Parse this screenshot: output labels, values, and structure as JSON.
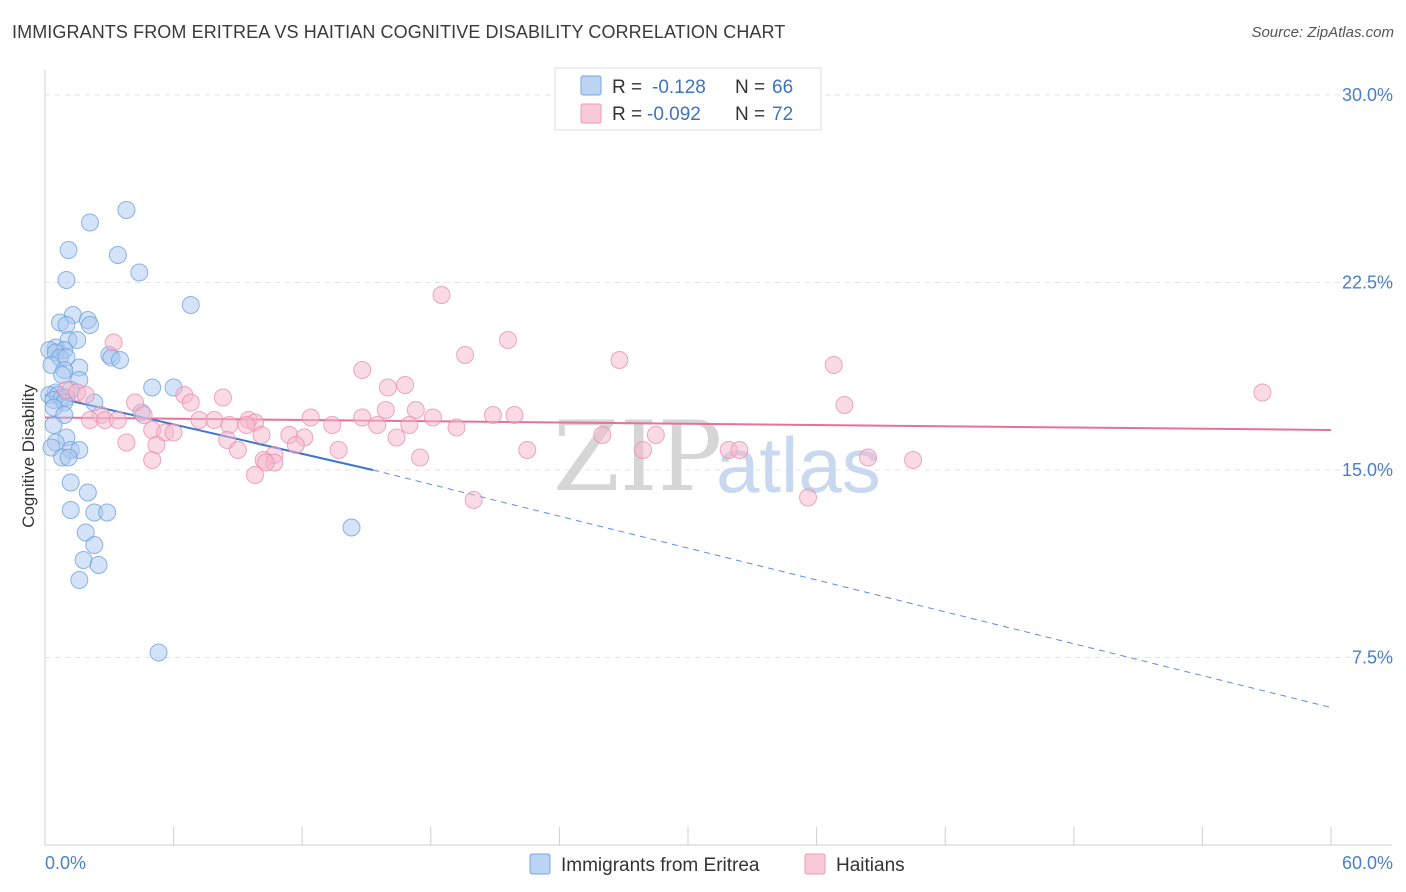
{
  "header": {
    "title": "IMMIGRANTS FROM ERITREA VS HAITIAN COGNITIVE DISABILITY CORRELATION CHART",
    "source": "Source: ZipAtlas.com"
  },
  "watermark": {
    "zip": "ZIP",
    "atlas": "atlas"
  },
  "legend": {
    "rows": [
      {
        "r_label": "R =",
        "r_value": "-0.128",
        "n_label": "N =",
        "n_value": "66",
        "color": "#a9c8ef"
      },
      {
        "r_label": "R =",
        "r_value": "-0.092",
        "n_label": "N =",
        "n_value": "72",
        "color": "#f5b8cb"
      }
    ]
  },
  "bottom_legend": [
    {
      "label": "Immigrants from Eritrea",
      "color": "#a9c8ef"
    },
    {
      "label": "Haitians",
      "color": "#f5b8cb"
    }
  ],
  "chart_data": {
    "type": "scatter",
    "title": "IMMIGRANTS FROM ERITREA VS HAITIAN COGNITIVE DISABILITY CORRELATION CHART",
    "xlabel": "",
    "ylabel": "Cognitive Disability",
    "xlim": [
      0,
      60
    ],
    "ylim": [
      0,
      31
    ],
    "x_tick_labels": [
      "0.0%",
      "60.0%"
    ],
    "y_ticks": [
      7.5,
      15.0,
      22.5,
      30.0
    ],
    "y_tick_labels": [
      "7.5%",
      "15.0%",
      "22.5%",
      "30.0%"
    ],
    "grid": true,
    "legend_position": "top-center",
    "series": [
      {
        "name": "Immigrants from Eritrea",
        "color": "#6a9edc",
        "fill": "#a9c8ef",
        "trend": {
          "x0": 0,
          "y0": 18.0,
          "x1_solid": 15.3,
          "y1_solid": 15.0,
          "x1": 60,
          "y1": 5.5
        },
        "points": [
          [
            3.8,
            25.4
          ],
          [
            2.1,
            24.9
          ],
          [
            3.4,
            23.6
          ],
          [
            1.1,
            23.8
          ],
          [
            4.4,
            22.9
          ],
          [
            1.0,
            22.6
          ],
          [
            6.8,
            21.6
          ],
          [
            1.3,
            21.2
          ],
          [
            2.0,
            21.0
          ],
          [
            0.7,
            20.9
          ],
          [
            1.0,
            20.8
          ],
          [
            2.1,
            20.8
          ],
          [
            1.1,
            20.2
          ],
          [
            1.5,
            20.2
          ],
          [
            0.5,
            19.9
          ],
          [
            0.9,
            19.8
          ],
          [
            0.2,
            19.8
          ],
          [
            0.5,
            19.7
          ],
          [
            3.0,
            19.6
          ],
          [
            3.1,
            19.5
          ],
          [
            3.5,
            19.4
          ],
          [
            0.7,
            19.5
          ],
          [
            1.0,
            19.5
          ],
          [
            0.3,
            19.2
          ],
          [
            1.6,
            19.1
          ],
          [
            0.9,
            19.0
          ],
          [
            0.8,
            18.8
          ],
          [
            1.6,
            18.6
          ],
          [
            5.0,
            18.3
          ],
          [
            6.0,
            18.3
          ],
          [
            1.2,
            18.2
          ],
          [
            0.5,
            18.1
          ],
          [
            0.2,
            18.0
          ],
          [
            0.6,
            18.0
          ],
          [
            0.8,
            17.9
          ],
          [
            1.0,
            17.9
          ],
          [
            0.4,
            17.8
          ],
          [
            0.9,
            17.7
          ],
          [
            2.3,
            17.7
          ],
          [
            0.4,
            17.5
          ],
          [
            4.5,
            17.3
          ],
          [
            0.9,
            17.2
          ],
          [
            0.4,
            16.8
          ],
          [
            1.0,
            16.3
          ],
          [
            0.5,
            16.1
          ],
          [
            0.3,
            15.9
          ],
          [
            1.2,
            15.8
          ],
          [
            1.6,
            15.8
          ],
          [
            0.8,
            15.5
          ],
          [
            1.1,
            15.5
          ],
          [
            1.2,
            14.5
          ],
          [
            2.0,
            14.1
          ],
          [
            1.2,
            13.4
          ],
          [
            2.3,
            13.3
          ],
          [
            2.9,
            13.3
          ],
          [
            14.3,
            12.7
          ],
          [
            1.9,
            12.5
          ],
          [
            2.3,
            12.0
          ],
          [
            1.8,
            11.4
          ],
          [
            2.5,
            11.2
          ],
          [
            1.6,
            10.6
          ],
          [
            5.3,
            7.7
          ]
        ]
      },
      {
        "name": "Haitians",
        "color": "#e98bab",
        "fill": "#f5b8cb",
        "trend": {
          "x0": 0,
          "y0": 17.1,
          "x1": 60,
          "y1": 16.6
        },
        "points": [
          [
            18.5,
            22.0
          ],
          [
            21.6,
            20.2
          ],
          [
            3.2,
            20.1
          ],
          [
            19.6,
            19.6
          ],
          [
            26.8,
            19.4
          ],
          [
            36.8,
            19.2
          ],
          [
            14.8,
            19.0
          ],
          [
            16.8,
            18.4
          ],
          [
            16.0,
            18.3
          ],
          [
            56.8,
            18.1
          ],
          [
            1.0,
            18.2
          ],
          [
            1.5,
            18.1
          ],
          [
            1.9,
            18.0
          ],
          [
            6.5,
            18.0
          ],
          [
            8.3,
            17.9
          ],
          [
            4.2,
            17.7
          ],
          [
            6.8,
            17.7
          ],
          [
            37.3,
            17.6
          ],
          [
            15.9,
            17.4
          ],
          [
            17.3,
            17.4
          ],
          [
            20.9,
            17.2
          ],
          [
            21.9,
            17.2
          ],
          [
            2.6,
            17.2
          ],
          [
            4.6,
            17.2
          ],
          [
            14.8,
            17.1
          ],
          [
            18.1,
            17.1
          ],
          [
            2.1,
            17.0
          ],
          [
            2.8,
            17.0
          ],
          [
            3.4,
            17.0
          ],
          [
            7.2,
            17.0
          ],
          [
            7.9,
            17.0
          ],
          [
            9.5,
            17.0
          ],
          [
            12.4,
            17.1
          ],
          [
            9.8,
            16.9
          ],
          [
            8.6,
            16.8
          ],
          [
            9.4,
            16.8
          ],
          [
            13.4,
            16.8
          ],
          [
            15.5,
            16.8
          ],
          [
            17.0,
            16.8
          ],
          [
            19.2,
            16.7
          ],
          [
            5.0,
            16.6
          ],
          [
            5.6,
            16.5
          ],
          [
            6.0,
            16.5
          ],
          [
            11.4,
            16.4
          ],
          [
            10.1,
            16.4
          ],
          [
            12.1,
            16.3
          ],
          [
            16.4,
            16.3
          ],
          [
            26.0,
            16.4
          ],
          [
            28.5,
            16.4
          ],
          [
            8.5,
            16.2
          ],
          [
            3.8,
            16.1
          ],
          [
            5.2,
            16.0
          ],
          [
            11.7,
            16.0
          ],
          [
            13.7,
            15.8
          ],
          [
            22.5,
            15.8
          ],
          [
            27.9,
            15.8
          ],
          [
            9.0,
            15.8
          ],
          [
            31.9,
            15.8
          ],
          [
            32.4,
            15.8
          ],
          [
            10.7,
            15.6
          ],
          [
            17.5,
            15.5
          ],
          [
            10.2,
            15.4
          ],
          [
            10.7,
            15.3
          ],
          [
            38.4,
            15.5
          ],
          [
            40.5,
            15.4
          ],
          [
            5.0,
            15.4
          ],
          [
            10.3,
            15.3
          ],
          [
            9.8,
            14.8
          ],
          [
            20.0,
            13.8
          ],
          [
            35.6,
            13.9
          ]
        ]
      }
    ]
  }
}
